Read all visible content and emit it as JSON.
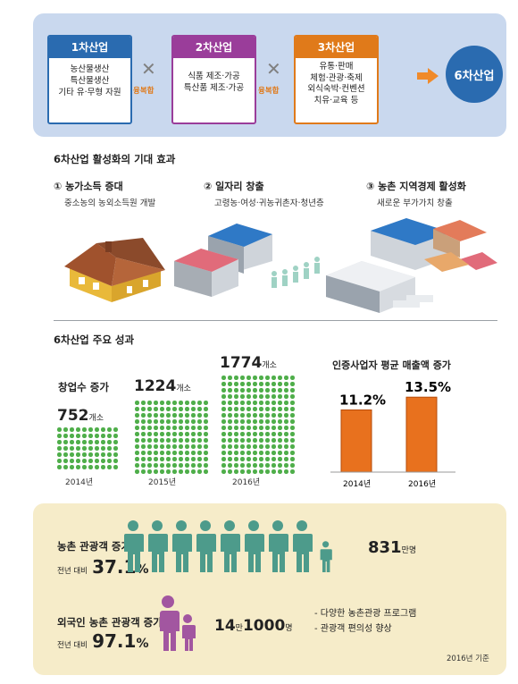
{
  "colors": {
    "primary_blue": "#2a6bb0",
    "secondary_purple": "#9a3d9a",
    "tertiary_orange": "#e07a1a",
    "dot_green": "#4fae4a",
    "person_teal": "#4d9b8b",
    "person_purple": "#a256a0",
    "bar_orange": "#e8711e"
  },
  "industries": {
    "first": {
      "title": "1차산업",
      "lines": [
        "농산물생산",
        "특산물생산",
        "기타 유·무형 자원"
      ]
    },
    "second": {
      "title": "2차산업",
      "lines": [
        "식품 제조·가공",
        "특산품 제조·가공"
      ]
    },
    "third": {
      "title": "3차산업",
      "lines": [
        "유통·판매",
        "체험·관광·축제",
        "외식숙박·컨벤션",
        "치유·교육 등"
      ]
    },
    "fusion_label": "융복합",
    "result": "6차산업"
  },
  "effects": {
    "title": "6차산업 활성화의 기대 효과",
    "items": [
      {
        "title": "① 농가소득 증대",
        "sub": "중소농의 농외소득원 개발",
        "icon": "farmhouse-icon"
      },
      {
        "title": "② 일자리 창출",
        "sub": "고령농·여성·귀농귀촌자·청년층",
        "icon": "factory-people-icon"
      },
      {
        "title": "③ 농촌 지역경제 활성화",
        "sub": "새로운 부가가치 창출",
        "icon": "industrial-complex-icon"
      }
    ]
  },
  "results": {
    "title": "6차산업 주요 성과",
    "startups": {
      "label": "창업수 증가",
      "unit": "개소",
      "years": [
        "2014년",
        "2015년",
        "2016년"
      ],
      "values": [
        "752",
        "1224",
        "1774"
      ]
    },
    "sales": {
      "label": "인증사업자 평균 매출액 증가",
      "years": [
        "2014년",
        "2016년"
      ],
      "values": [
        "11.2",
        "13.5"
      ],
      "unit": "%"
    }
  },
  "tourism": {
    "domestic": {
      "label": "농촌 관광객 증가",
      "yoy_label": "전년 대비",
      "yoy_value": "37.1",
      "yoy_unit": "%",
      "count": "831",
      "count_unit": "만명"
    },
    "foreign": {
      "label": "외국인 농촌 관광객 증가",
      "yoy_label": "전년 대비",
      "yoy_value": "97.1",
      "yoy_unit": "%",
      "count_a": "14",
      "count_a_unit": "만",
      "count_b": "1000",
      "count_b_unit": "명"
    },
    "bullets": [
      "- 다양한 농촌관광 프로그램",
      "- 관광객 편의성 향상"
    ],
    "footnote": "2016년 기준"
  },
  "chart_data": {
    "type": "bar",
    "categories": [
      "2014년",
      "2016년"
    ],
    "values": [
      11.2,
      13.5
    ],
    "title": "인증사업자 평균 매출액 증가",
    "xlabel": "",
    "ylabel": "",
    "unit": "%"
  }
}
